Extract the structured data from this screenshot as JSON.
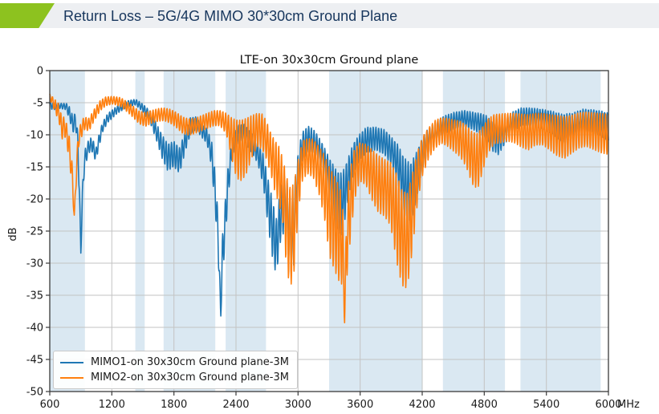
{
  "header": {
    "title": "Return Loss – 5G/4G MIMO 30*30cm Ground Plane",
    "accent_color": "#8dc21f",
    "bar_color": "#edeff2",
    "text_color": "#17365d"
  },
  "chart_data": {
    "type": "line",
    "title": "LTE-on 30x30cm Ground plane",
    "ylabel": "dB",
    "x_unit_label": "MHz",
    "xlim": [
      600,
      6000
    ],
    "ylim": [
      -50,
      0
    ],
    "x_ticks": [
      600,
      1200,
      1800,
      2400,
      3000,
      3600,
      4200,
      4800,
      5400,
      6000
    ],
    "y_ticks": [
      0,
      -5,
      -10,
      -15,
      -20,
      -25,
      -30,
      -35,
      -40,
      -45,
      -50
    ],
    "grid": true,
    "grid_color": "#c3c3c3",
    "frame_color": "#3a3a3a",
    "band_color": "#dae8f2",
    "legend_position": "lower left",
    "shaded_bands_mhz": [
      [
        600,
        940
      ],
      [
        1427,
        1518
      ],
      [
        1700,
        2200
      ],
      [
        2300,
        2690
      ],
      [
        3300,
        4200
      ],
      [
        4400,
        5000
      ],
      [
        5150,
        5925
      ]
    ],
    "ripple": {
      "sample_step_mhz": 3,
      "note": "curves shown as envelope center c with superimposed ripple of amplitude a"
    },
    "series": [
      {
        "name": "MIMO1-on 30x30cm Ground plane-3M",
        "color": "#1f77b4",
        "ripple_period_mhz": 26,
        "ripple_phase": 0,
        "envelope_f_c_a": [
          [
            600,
            -5.2,
            0.8
          ],
          [
            640,
            -5.6,
            0.5
          ],
          [
            700,
            -5.5,
            0.4
          ],
          [
            760,
            -5.6,
            0.5
          ],
          [
            800,
            -7.0,
            1.2
          ],
          [
            825,
            -8.5,
            1.2
          ],
          [
            848,
            -7.5,
            1.0
          ],
          [
            870,
            -11,
            1.5
          ],
          [
            885,
            -18,
            1.5
          ],
          [
            900,
            -28.3,
            0.6
          ],
          [
            915,
            -20,
            1.5
          ],
          [
            935,
            -14,
            1.5
          ],
          [
            975,
            -11.8,
            1.0
          ],
          [
            1010,
            -11.5,
            1.2
          ],
          [
            1045,
            -13.2,
            1.0
          ],
          [
            1075,
            -11,
            1.0
          ],
          [
            1110,
            -8.8,
            0.8
          ],
          [
            1160,
            -7.4,
            0.7
          ],
          [
            1250,
            -6.1,
            0.6
          ],
          [
            1350,
            -5.2,
            0.5
          ],
          [
            1430,
            -4.9,
            0.45
          ],
          [
            1500,
            -5.8,
            0.6
          ],
          [
            1570,
            -7.2,
            0.9
          ],
          [
            1630,
            -9.5,
            1.3
          ],
          [
            1690,
            -12,
            1.9
          ],
          [
            1740,
            -13.5,
            2.1
          ],
          [
            1800,
            -13,
            2.0
          ],
          [
            1855,
            -14,
            2.0
          ],
          [
            1910,
            -11,
            1.6
          ],
          [
            1960,
            -8.6,
            1.3
          ],
          [
            2010,
            -8.2,
            1.0
          ],
          [
            2070,
            -9.4,
            1.0
          ],
          [
            2120,
            -10.2,
            1.2
          ],
          [
            2165,
            -13,
            2.0
          ],
          [
            2200,
            -19,
            3.0
          ],
          [
            2228,
            -26,
            3.0
          ],
          [
            2252,
            -38.3,
            1.0
          ],
          [
            2268,
            -29,
            3.0
          ],
          [
            2292,
            -24.5,
            3.5
          ],
          [
            2320,
            -18,
            2.5
          ],
          [
            2360,
            -12.5,
            1.6
          ],
          [
            2420,
            -9.9,
            1.4
          ],
          [
            2475,
            -9.6,
            1.3
          ],
          [
            2540,
            -11,
            1.5
          ],
          [
            2610,
            -12.8,
            1.6
          ],
          [
            2665,
            -15.5,
            2.5
          ],
          [
            2705,
            -20,
            3.5
          ],
          [
            2745,
            -24,
            4.5
          ],
          [
            2790,
            -27.5,
            4.5
          ],
          [
            2835,
            -22,
            4.0
          ],
          [
            2875,
            -20.5,
            4.5
          ],
          [
            2915,
            -25,
            6.0
          ],
          [
            2952,
            -26,
            6.5
          ],
          [
            2990,
            -17.5,
            3.5
          ],
          [
            3035,
            -12,
            2.3
          ],
          [
            3095,
            -10.6,
            2.0
          ],
          [
            3155,
            -11.2,
            2.0
          ],
          [
            3225,
            -13.2,
            2.2
          ],
          [
            3300,
            -16.5,
            3.0
          ],
          [
            3370,
            -20,
            4.5
          ],
          [
            3425,
            -21,
            5.0
          ],
          [
            3475,
            -17.5,
            3.5
          ],
          [
            3535,
            -13.8,
            2.5
          ],
          [
            3600,
            -11.8,
            2.0
          ],
          [
            3660,
            -10.8,
            2.0
          ],
          [
            3760,
            -10.6,
            1.8
          ],
          [
            3840,
            -11.2,
            2.0
          ],
          [
            3905,
            -12.6,
            2.2
          ],
          [
            3965,
            -14.5,
            3.0
          ],
          [
            4025,
            -18,
            4.5
          ],
          [
            4085,
            -19,
            4.5
          ],
          [
            4135,
            -17,
            4.0
          ],
          [
            4185,
            -13.8,
            2.6
          ],
          [
            4245,
            -11.2,
            2.0
          ],
          [
            4310,
            -9.9,
            1.7
          ],
          [
            4405,
            -8.6,
            1.5
          ],
          [
            4505,
            -7.8,
            1.3
          ],
          [
            4605,
            -7.5,
            1.3
          ],
          [
            4705,
            -7.9,
            1.4
          ],
          [
            4805,
            -8.6,
            1.8
          ],
          [
            4875,
            -10.2,
            2.3
          ],
          [
            4935,
            -10.8,
            2.3
          ],
          [
            4995,
            -9.6,
            2.0
          ],
          [
            5065,
            -8.1,
            1.6
          ],
          [
            5155,
            -7.2,
            1.4
          ],
          [
            5255,
            -7.2,
            1.4
          ],
          [
            5355,
            -7.5,
            1.5
          ],
          [
            5455,
            -8.1,
            1.8
          ],
          [
            5555,
            -9.1,
            2.3
          ],
          [
            5655,
            -8.6,
            2.0
          ],
          [
            5755,
            -7.7,
            1.7
          ],
          [
            5855,
            -7.9,
            1.8
          ],
          [
            5935,
            -8.3,
            2.0
          ],
          [
            6000,
            -8.8,
            2.2
          ]
        ]
      },
      {
        "name": "MIMO2-on 30x30cm Ground plane-3M",
        "color": "#ff7f0e",
        "ripple_period_mhz": 27,
        "ripple_phase": 1.8,
        "envelope_f_c_a": [
          [
            600,
            -4.0,
            0.4
          ],
          [
            645,
            -5.3,
            0.9
          ],
          [
            690,
            -6.6,
            1.4
          ],
          [
            715,
            -9.0,
            1.8
          ],
          [
            742,
            -8.6,
            1.4
          ],
          [
            772,
            -10.5,
            1.8
          ],
          [
            800,
            -13.5,
            2.2
          ],
          [
            820,
            -17,
            1.8
          ],
          [
            838,
            -23.2,
            0.8
          ],
          [
            858,
            -15,
            1.8
          ],
          [
            882,
            -10.3,
            1.4
          ],
          [
            930,
            -8.2,
            1.0
          ],
          [
            980,
            -8.4,
            1.0
          ],
          [
            1030,
            -6.9,
            0.9
          ],
          [
            1085,
            -5.5,
            0.8
          ],
          [
            1140,
            -4.8,
            0.7
          ],
          [
            1210,
            -4.6,
            0.6
          ],
          [
            1285,
            -4.9,
            0.7
          ],
          [
            1345,
            -5.6,
            0.8
          ],
          [
            1405,
            -6.4,
            0.9
          ],
          [
            1465,
            -7.3,
            1.0
          ],
          [
            1525,
            -7.6,
            1.1
          ],
          [
            1585,
            -7.2,
            1.0
          ],
          [
            1645,
            -6.9,
            1.0
          ],
          [
            1705,
            -6.8,
            1.0
          ],
          [
            1765,
            -7.1,
            1.1
          ],
          [
            1825,
            -7.7,
            1.2
          ],
          [
            1885,
            -8.5,
            1.3
          ],
          [
            1945,
            -8.8,
            1.3
          ],
          [
            2005,
            -8.6,
            1.2
          ],
          [
            2065,
            -8.2,
            1.2
          ],
          [
            2125,
            -7.8,
            1.2
          ],
          [
            2185,
            -7.4,
            1.2
          ],
          [
            2245,
            -7.4,
            1.2
          ],
          [
            2305,
            -8.2,
            1.6
          ],
          [
            2360,
            -10.5,
            3.2
          ],
          [
            2405,
            -12.2,
            4.6
          ],
          [
            2455,
            -12.4,
            4.8
          ],
          [
            2505,
            -11.6,
            4.3
          ],
          [
            2555,
            -10.2,
            3.3
          ],
          [
            2605,
            -9.2,
            2.6
          ],
          [
            2655,
            -9.5,
            2.8
          ],
          [
            2695,
            -10.8,
            3.0
          ],
          [
            2735,
            -12.8,
            3.2
          ],
          [
            2775,
            -14.8,
            4.0
          ],
          [
            2815,
            -16.2,
            4.5
          ],
          [
            2852,
            -18.5,
            5.0
          ],
          [
            2892,
            -24,
            7.5
          ],
          [
            2930,
            -26,
            7.6
          ],
          [
            2965,
            -24,
            7.0
          ],
          [
            3002,
            -17.8,
            4.0
          ],
          [
            3045,
            -13.9,
            3.0
          ],
          [
            3095,
            -13.3,
            2.8
          ],
          [
            3145,
            -13.6,
            3.0
          ],
          [
            3205,
            -15.6,
            3.8
          ],
          [
            3255,
            -18,
            5.0
          ],
          [
            3305,
            -22,
            7.0
          ],
          [
            3362,
            -24,
            7.5
          ],
          [
            3412,
            -26,
            7.5
          ],
          [
            3432,
            -27,
            6.0
          ],
          [
            3450,
            -38.6,
            0.8
          ],
          [
            3468,
            -27,
            6.0
          ],
          [
            3495,
            -22,
            6.0
          ],
          [
            3545,
            -16.2,
            4.0
          ],
          [
            3595,
            -14.2,
            3.0
          ],
          [
            3655,
            -14.6,
            3.2
          ],
          [
            3715,
            -16.2,
            4.0
          ],
          [
            3775,
            -17.6,
            4.5
          ],
          [
            3835,
            -18.2,
            4.5
          ],
          [
            3895,
            -19.2,
            5.0
          ],
          [
            3955,
            -23,
            7.0
          ],
          [
            4005,
            -26,
            7.5
          ],
          [
            4055,
            -26.5,
            7.5
          ],
          [
            4105,
            -22,
            6.0
          ],
          [
            4155,
            -16.5,
            4.0
          ],
          [
            4205,
            -13.2,
            3.0
          ],
          [
            4265,
            -11.2,
            2.4
          ],
          [
            4325,
            -9.9,
            2.2
          ],
          [
            4385,
            -9.3,
            2.0
          ],
          [
            4445,
            -9.6,
            2.2
          ],
          [
            4505,
            -10.1,
            2.5
          ],
          [
            4565,
            -10.6,
            2.8
          ],
          [
            4625,
            -11.7,
            3.3
          ],
          [
            4685,
            -13.6,
            4.1
          ],
          [
            4735,
            -14.1,
            4.4
          ],
          [
            4785,
            -12.2,
            3.5
          ],
          [
            4835,
            -10.2,
            2.7
          ],
          [
            4895,
            -9.1,
            2.3
          ],
          [
            4955,
            -9.0,
            2.3
          ],
          [
            5015,
            -8.8,
            2.2
          ],
          [
            5085,
            -8.9,
            2.3
          ],
          [
            5155,
            -9.3,
            2.6
          ],
          [
            5225,
            -9.6,
            2.8
          ],
          [
            5295,
            -9.1,
            2.5
          ],
          [
            5365,
            -9.1,
            2.5
          ],
          [
            5435,
            -9.6,
            2.8
          ],
          [
            5505,
            -10.1,
            3.2
          ],
          [
            5575,
            -10.4,
            3.3
          ],
          [
            5645,
            -9.9,
            3.0
          ],
          [
            5715,
            -9.3,
            2.8
          ],
          [
            5785,
            -9.1,
            2.7
          ],
          [
            5855,
            -9.4,
            2.9
          ],
          [
            5925,
            -9.7,
            3.1
          ],
          [
            6000,
            -9.9,
            3.2
          ]
        ]
      }
    ]
  }
}
